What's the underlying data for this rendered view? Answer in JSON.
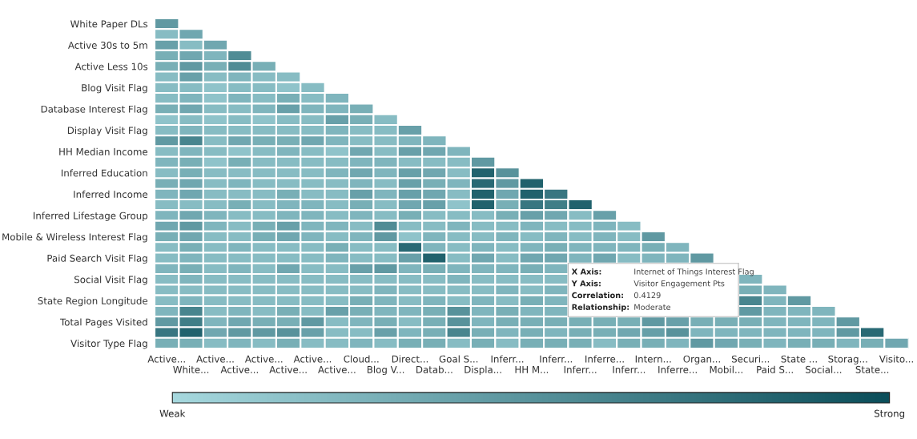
{
  "chart_data": {
    "type": "heatmap",
    "categories": [
      "Active...",
      "White...",
      "Active...",
      "Active...",
      "Active...",
      "Active...",
      "Active...",
      "Active...",
      "Cloud...",
      "Blog V...",
      "Direct...",
      "Datab...",
      "Goal S...",
      "Displa...",
      "Inferr...",
      "HH M...",
      "Inferr...",
      "Inferr...",
      "Inferre...",
      "Inferr...",
      "Intern...",
      "Inferre...",
      "Organ...",
      "Mobil...",
      "Securi...",
      "Paid S...",
      "State ...",
      "Social...",
      "Storag...",
      "State...",
      "Visito..."
    ],
    "y_categories": [
      "White Paper DLs",
      null,
      "Active 30s to 5m",
      null,
      "Active Less 10s",
      null,
      "Blog Visit Flag",
      null,
      "Database Interest Flag",
      null,
      "Display Visit Flag",
      null,
      "HH Median Income",
      null,
      "Inferred Education",
      null,
      "Inferred Income",
      null,
      "Inferred Lifestage Group",
      null,
      "Mobile & Wireless Interest Flag",
      null,
      "Paid Search Visit Flag",
      null,
      "Social Visit Flag",
      null,
      "State Region Longitude",
      null,
      "Total Pages Visited",
      null,
      "Visitor Type Flag"
    ],
    "cells": [
      [
        0.45,
        null,
        null,
        null,
        null,
        null,
        null,
        null,
        null,
        null,
        null,
        null,
        null,
        null,
        null,
        null,
        null,
        null,
        null,
        null,
        null,
        null,
        null,
        null,
        null,
        null,
        null,
        null,
        null,
        null,
        null
      ],
      [
        0.2,
        0.35,
        null,
        null,
        null,
        null,
        null,
        null,
        null,
        null,
        null,
        null,
        null,
        null,
        null,
        null,
        null,
        null,
        null,
        null,
        null,
        null,
        null,
        null,
        null,
        null,
        null,
        null,
        null,
        null,
        null
      ],
      [
        0.4,
        0.2,
        0.35,
        null,
        null,
        null,
        null,
        null,
        null,
        null,
        null,
        null,
        null,
        null,
        null,
        null,
        null,
        null,
        null,
        null,
        null,
        null,
        null,
        null,
        null,
        null,
        null,
        null,
        null,
        null,
        null
      ],
      [
        0.3,
        0.35,
        0.25,
        0.55,
        null,
        null,
        null,
        null,
        null,
        null,
        null,
        null,
        null,
        null,
        null,
        null,
        null,
        null,
        null,
        null,
        null,
        null,
        null,
        null,
        null,
        null,
        null,
        null,
        null,
        null,
        null
      ],
      [
        0.3,
        0.45,
        0.3,
        0.55,
        0.3,
        null,
        null,
        null,
        null,
        null,
        null,
        null,
        null,
        null,
        null,
        null,
        null,
        null,
        null,
        null,
        null,
        null,
        null,
        null,
        null,
        null,
        null,
        null,
        null,
        null,
        null
      ],
      [
        0.2,
        0.4,
        0.2,
        0.25,
        0.2,
        0.2,
        null,
        null,
        null,
        null,
        null,
        null,
        null,
        null,
        null,
        null,
        null,
        null,
        null,
        null,
        null,
        null,
        null,
        null,
        null,
        null,
        null,
        null,
        null,
        null,
        null
      ],
      [
        0.2,
        0.2,
        0.15,
        0.2,
        0.2,
        0.15,
        0.2,
        null,
        null,
        null,
        null,
        null,
        null,
        null,
        null,
        null,
        null,
        null,
        null,
        null,
        null,
        null,
        null,
        null,
        null,
        null,
        null,
        null,
        null,
        null,
        null
      ],
      [
        0.2,
        0.25,
        0.15,
        0.25,
        0.2,
        0.3,
        0.2,
        0.25,
        null,
        null,
        null,
        null,
        null,
        null,
        null,
        null,
        null,
        null,
        null,
        null,
        null,
        null,
        null,
        null,
        null,
        null,
        null,
        null,
        null,
        null,
        null
      ],
      [
        0.3,
        0.35,
        0.2,
        0.2,
        0.25,
        0.4,
        0.25,
        0.25,
        0.3,
        null,
        null,
        null,
        null,
        null,
        null,
        null,
        null,
        null,
        null,
        null,
        null,
        null,
        null,
        null,
        null,
        null,
        null,
        null,
        null,
        null,
        null
      ],
      [
        0.15,
        0.2,
        0.15,
        0.2,
        0.15,
        0.2,
        0.2,
        0.4,
        0.3,
        0.2,
        null,
        null,
        null,
        null,
        null,
        null,
        null,
        null,
        null,
        null,
        null,
        null,
        null,
        null,
        null,
        null,
        null,
        null,
        null,
        null,
        null
      ],
      [
        0.2,
        0.25,
        0.2,
        0.2,
        0.2,
        0.2,
        0.2,
        0.25,
        0.2,
        0.2,
        0.4,
        null,
        null,
        null,
        null,
        null,
        null,
        null,
        null,
        null,
        null,
        null,
        null,
        null,
        null,
        null,
        null,
        null,
        null,
        null,
        null
      ],
      [
        0.45,
        0.6,
        0.2,
        0.35,
        0.3,
        0.3,
        0.35,
        0.25,
        0.2,
        0.2,
        0.25,
        0.25,
        null,
        null,
        null,
        null,
        null,
        null,
        null,
        null,
        null,
        null,
        null,
        null,
        null,
        null,
        null,
        null,
        null,
        null,
        null
      ],
      [
        0.2,
        0.25,
        0.2,
        0.15,
        0.2,
        0.25,
        0.2,
        0.15,
        0.35,
        0.2,
        0.4,
        0.35,
        0.25,
        null,
        null,
        null,
        null,
        null,
        null,
        null,
        null,
        null,
        null,
        null,
        null,
        null,
        null,
        null,
        null,
        null,
        null
      ],
      [
        0.25,
        0.3,
        0.15,
        0.3,
        0.2,
        0.2,
        0.2,
        0.2,
        0.25,
        0.25,
        0.2,
        0.2,
        0.2,
        0.45,
        null,
        null,
        null,
        null,
        null,
        null,
        null,
        null,
        null,
        null,
        null,
        null,
        null,
        null,
        null,
        null,
        null
      ],
      [
        0.2,
        0.3,
        0.2,
        0.2,
        0.2,
        0.2,
        0.2,
        0.25,
        0.35,
        0.25,
        0.4,
        0.35,
        0.2,
        0.85,
        0.5,
        null,
        null,
        null,
        null,
        null,
        null,
        null,
        null,
        null,
        null,
        null,
        null,
        null,
        null,
        null,
        null
      ],
      [
        0.3,
        0.35,
        0.2,
        0.25,
        0.2,
        0.2,
        0.2,
        0.2,
        0.25,
        0.2,
        0.4,
        0.3,
        0.25,
        0.8,
        0.45,
        0.85,
        null,
        null,
        null,
        null,
        null,
        null,
        null,
        null,
        null,
        null,
        null,
        null,
        null,
        null,
        null
      ],
      [
        0.25,
        0.35,
        0.2,
        0.2,
        0.2,
        0.3,
        0.2,
        0.2,
        0.4,
        0.25,
        0.4,
        0.35,
        0.2,
        0.85,
        0.35,
        0.85,
        0.7,
        null,
        null,
        null,
        null,
        null,
        null,
        null,
        null,
        null,
        null,
        null,
        null,
        null,
        null
      ],
      [
        0.2,
        0.2,
        0.2,
        0.3,
        0.2,
        0.25,
        0.25,
        0.2,
        0.3,
        0.2,
        0.35,
        0.4,
        0.15,
        0.85,
        0.3,
        0.7,
        0.65,
        0.85,
        null,
        null,
        null,
        null,
        null,
        null,
        null,
        null,
        null,
        null,
        null,
        null,
        null
      ],
      [
        0.25,
        0.35,
        0.25,
        0.2,
        0.2,
        0.25,
        0.25,
        0.2,
        0.25,
        0.2,
        0.3,
        0.2,
        0.2,
        0.2,
        0.3,
        0.4,
        0.35,
        0.2,
        0.4,
        null,
        null,
        null,
        null,
        null,
        null,
        null,
        null,
        null,
        null,
        null,
        null
      ],
      [
        0.35,
        0.45,
        0.25,
        0.2,
        0.3,
        0.4,
        0.25,
        0.25,
        0.2,
        0.55,
        0.2,
        0.2,
        0.25,
        0.2,
        0.2,
        0.25,
        0.2,
        0.2,
        0.25,
        0.2,
        null,
        null,
        null,
        null,
        null,
        null,
        null,
        null,
        null,
        null,
        null
      ],
      [
        0.3,
        0.35,
        0.2,
        0.2,
        0.3,
        0.35,
        0.25,
        0.2,
        0.25,
        0.45,
        0.15,
        0.25,
        0.2,
        0.2,
        0.25,
        0.2,
        0.25,
        0.2,
        0.25,
        0.2,
        0.45,
        null,
        null,
        null,
        null,
        null,
        null,
        null,
        null,
        null,
        null
      ],
      [
        0.2,
        0.3,
        0.2,
        0.25,
        0.2,
        0.2,
        0.2,
        0.3,
        0.2,
        0.2,
        0.8,
        0.25,
        0.2,
        0.25,
        0.2,
        0.25,
        0.3,
        0.25,
        0.25,
        0.25,
        0.3,
        0.25,
        null,
        null,
        null,
        null,
        null,
        null,
        null,
        null,
        null
      ],
      [
        0.2,
        0.25,
        0.2,
        0.2,
        0.2,
        0.2,
        0.2,
        0.25,
        0.2,
        0.2,
        0.4,
        0.85,
        0.2,
        0.35,
        0.2,
        0.35,
        0.35,
        0.25,
        0.35,
        0.2,
        0.25,
        0.25,
        0.45,
        null,
        null,
        null,
        null,
        null,
        null,
        null,
        null
      ],
      [
        0.25,
        0.3,
        0.2,
        0.25,
        0.2,
        0.35,
        0.2,
        0.2,
        0.4,
        0.45,
        0.25,
        0.3,
        0.25,
        0.25,
        0.25,
        0.3,
        0.25,
        null,
        null,
        null,
        null,
        null,
        null,
        null,
        null,
        null,
        null,
        null,
        null,
        null,
        null
      ],
      [
        0.2,
        0.25,
        0.2,
        0.2,
        0.2,
        0.2,
        0.2,
        0.2,
        0.2,
        0.2,
        0.2,
        0.2,
        0.25,
        0.2,
        0.2,
        0.2,
        0.2,
        null,
        null,
        null,
        null,
        null,
        null,
        null,
        0.25,
        null,
        null,
        null,
        null,
        null,
        null
      ],
      [
        0.2,
        0.2,
        0.2,
        0.2,
        0.2,
        0.2,
        0.2,
        0.2,
        0.2,
        0.25,
        0.2,
        0.2,
        0.2,
        0.2,
        0.25,
        0.2,
        0.25,
        null,
        null,
        null,
        null,
        null,
        null,
        null,
        0.3,
        0.25,
        null,
        null,
        null,
        null,
        null
      ],
      [
        0.2,
        0.25,
        0.2,
        0.2,
        0.2,
        0.2,
        0.2,
        0.2,
        0.3,
        0.25,
        0.2,
        0.25,
        0.2,
        0.25,
        0.2,
        0.3,
        0.25,
        null,
        null,
        null,
        null,
        null,
        null,
        null,
        0.6,
        0.25,
        0.45,
        null,
        null,
        null,
        null
      ],
      [
        0.25,
        0.6,
        0.2,
        0.25,
        0.2,
        0.3,
        0.2,
        0.4,
        0.3,
        0.25,
        0.25,
        0.3,
        0.5,
        0.25,
        0.3,
        0.25,
        0.25,
        null,
        null,
        null,
        null,
        null,
        null,
        null,
        0.45,
        0.25,
        0.25,
        0.25,
        null,
        null,
        null
      ],
      [
        0.45,
        0.65,
        0.25,
        0.35,
        0.3,
        0.3,
        0.45,
        0.2,
        0.25,
        0.3,
        0.2,
        0.3,
        0.5,
        0.25,
        0.3,
        0.3,
        0.3,
        0.3,
        0.3,
        0.3,
        0.45,
        0.4,
        0.3,
        0.3,
        0.3,
        0.25,
        0.25,
        0.25,
        0.45,
        null,
        null
      ],
      [
        0.7,
        0.85,
        0.35,
        0.45,
        0.45,
        0.5,
        0.4,
        0.2,
        0.2,
        0.4,
        0.25,
        0.3,
        0.6,
        0.3,
        0.25,
        0.3,
        0.25,
        0.3,
        0.3,
        0.35,
        0.41,
        0.5,
        0.25,
        0.25,
        0.25,
        0.25,
        0.25,
        0.25,
        0.45,
        0.8,
        null
      ],
      [
        0.3,
        0.3,
        0.2,
        0.25,
        0.2,
        0.3,
        0.2,
        0.2,
        0.25,
        0.2,
        0.3,
        0.3,
        0.2,
        0.3,
        0.2,
        0.3,
        0.3,
        0.3,
        0.2,
        0.3,
        0.3,
        0.25,
        0.45,
        0.35,
        0.3,
        0.25,
        0.3,
        0.3,
        0.25,
        0.3,
        0.35
      ]
    ],
    "colors": [
      "#a6d8de",
      "#0a4d59"
    ],
    "clim": [
      0,
      1
    ],
    "cticks": [
      {
        "value": 0,
        "label": "Weak"
      },
      {
        "value": 1,
        "label": "Strong"
      }
    ],
    "annotations": [
      "X Axis:",
      "Internet of Things Interest Flag",
      "Y Axis:",
      "Visitor Engagement Pts",
      "Correlation:",
      "0.4129",
      "Relationship:",
      "Moderate"
    ]
  }
}
